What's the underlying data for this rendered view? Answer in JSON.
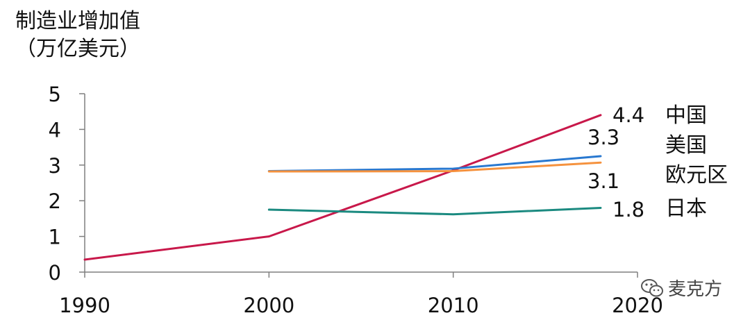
{
  "chart_data": {
    "type": "line",
    "ylabel_line1": "制造业增加值",
    "ylabel_line2": "（万亿美元）",
    "xlim": [
      1990,
      2020
    ],
    "ylim": [
      0,
      5
    ],
    "xticks": [
      "1990",
      "2000",
      "2010",
      "2020"
    ],
    "yticks": [
      "0",
      "1",
      "2",
      "3",
      "4",
      "5"
    ],
    "grid": false,
    "series": [
      {
        "name": "中国",
        "color": "#C8184A",
        "x": [
          1990,
          2000,
          2010,
          2018
        ],
        "y": [
          0.35,
          1.0,
          2.85,
          4.4
        ],
        "end_label": "4.4"
      },
      {
        "name": "美国",
        "color": "#2878D0",
        "x": [
          2000,
          2010,
          2018
        ],
        "y": [
          2.83,
          2.9,
          3.25
        ],
        "end_label": "3.3"
      },
      {
        "name": "欧元区",
        "color": "#F5923E",
        "x": [
          2000,
          2010,
          2018
        ],
        "y": [
          2.82,
          2.83,
          3.07
        ],
        "end_label": "3.1"
      },
      {
        "name": "日本",
        "color": "#1B8A80",
        "x": [
          2000,
          2010,
          2018
        ],
        "y": [
          1.75,
          1.62,
          1.8
        ],
        "end_label": "1.8"
      }
    ]
  },
  "watermark": {
    "text": "麦克方"
  }
}
